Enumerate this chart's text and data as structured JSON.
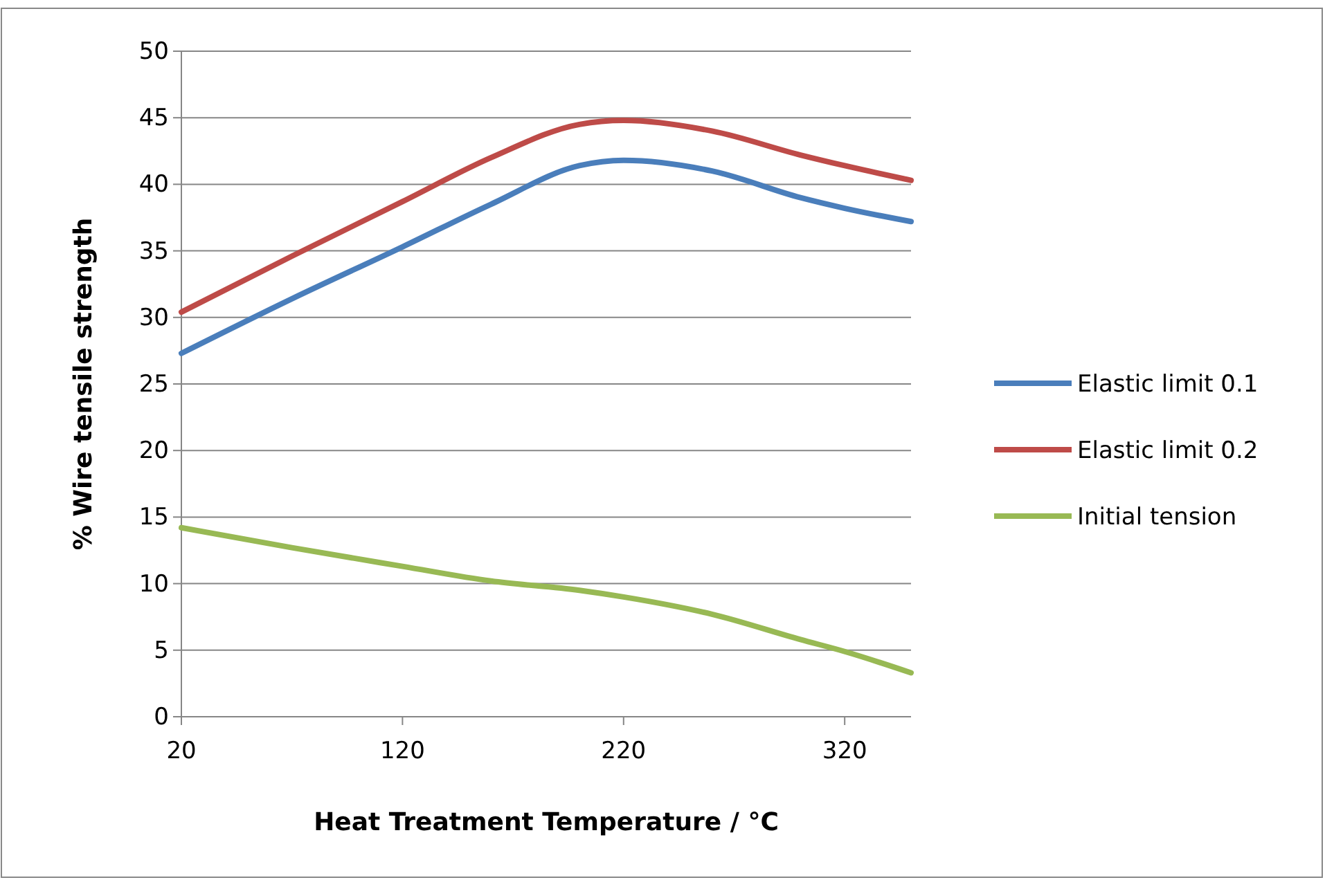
{
  "chart_data": {
    "type": "line",
    "xlabel": "Heat Treatment Temperature / °C",
    "ylabel": "% Wire tensile strength",
    "x": [
      20,
      70,
      120,
      160,
      200,
      220,
      260,
      300,
      320,
      350
    ],
    "series": [
      {
        "name": "Elastic limit 0.1",
        "color": "#4a7ebb",
        "values": [
          27.3,
          31.4,
          35.3,
          38.5,
          41.4,
          41.8,
          41,
          39,
          38.2,
          37.2
        ]
      },
      {
        "name": "Elastic limit 0.2",
        "color": "#be4b48",
        "values": [
          30.4,
          34.6,
          38.7,
          42,
          44.5,
          44.8,
          44,
          42.2,
          41.4,
          40.3
        ]
      },
      {
        "name": "Initial tension",
        "color": "#98b954",
        "values": [
          14.2,
          12.7,
          11.3,
          10.2,
          9.5,
          9,
          7.7,
          5.8,
          4.9,
          3.3
        ]
      }
    ],
    "xlim": [
      20,
      350
    ],
    "xticks": [
      20,
      120,
      220,
      320
    ],
    "ylim": [
      0,
      50
    ],
    "yticks": [
      0,
      5,
      10,
      15,
      20,
      25,
      30,
      35,
      40,
      45,
      50
    ],
    "grid": "y",
    "legend": "right",
    "marker": "none",
    "line_style": "solid"
  }
}
